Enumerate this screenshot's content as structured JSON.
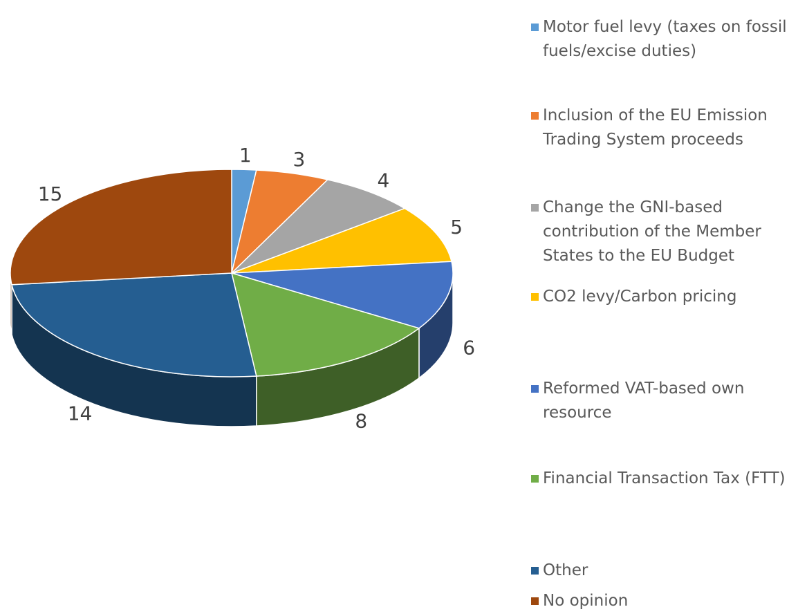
{
  "chart_data": {
    "type": "pie",
    "categories": [
      "Motor fuel levy (taxes on fossil fuels/excise duties)",
      "Inclusion of the EU Emission Trading System proceeds",
      "Change the GNI-based contribution of the Member States to the EU Budget",
      "CO2 levy/Carbon pricing",
      "Reformed VAT-based own resource",
      "Financial Transaction Tax (FTT)",
      "Other",
      "No opinion"
    ],
    "values": [
      1,
      3,
      4,
      5,
      6,
      8,
      14,
      15
    ],
    "colors": [
      "#5b9bd5",
      "#ed7d31",
      "#a5a5a5",
      "#ffc000",
      "#4472c4",
      "#70ad47",
      "#255e91",
      "#9e480e"
    ],
    "legend": "right"
  }
}
